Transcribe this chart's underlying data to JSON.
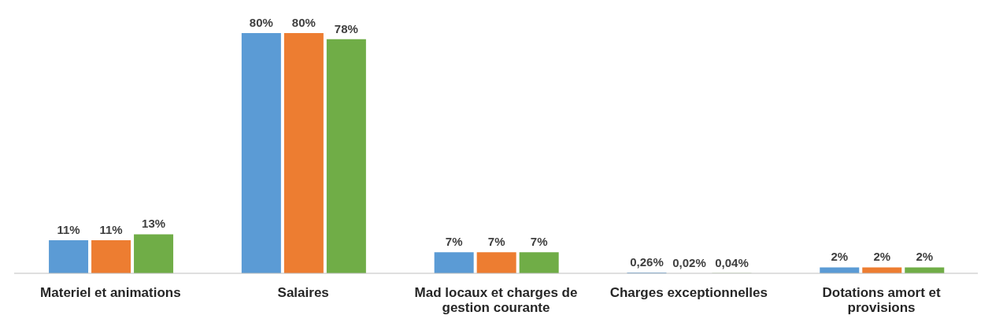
{
  "chart_data": {
    "type": "bar",
    "categories": [
      "Materiel et animations",
      "Salaires",
      "Mad locaux et charges de gestion courante",
      "Charges exceptionnelles",
      "Dotations amort et provisions"
    ],
    "series": [
      {
        "color": "#5b9bd5",
        "values": [
          11,
          80,
          7,
          0.26,
          2
        ],
        "value_labels": [
          "11%",
          "80%",
          "7%",
          "0,26%",
          "2%"
        ]
      },
      {
        "color": "#ed7d31",
        "values": [
          11,
          80,
          7,
          0.02,
          2
        ],
        "value_labels": [
          "11%",
          "80%",
          "7%",
          "0,02%",
          "2%"
        ]
      },
      {
        "color": "#70ad47",
        "values": [
          13,
          78,
          7,
          0.04,
          2
        ],
        "value_labels": [
          "13%",
          "78%",
          "7%",
          "0,04%",
          "2%"
        ]
      }
    ],
    "grid": false,
    "legend": false
  }
}
